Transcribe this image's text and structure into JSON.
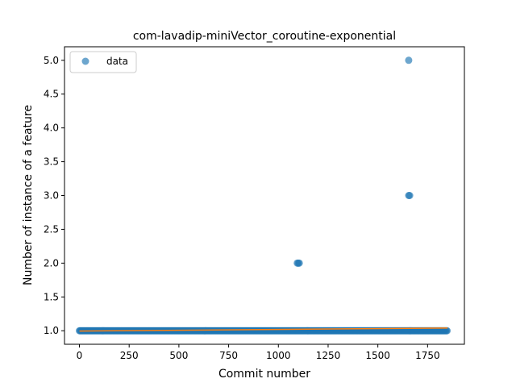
{
  "chart_data": {
    "type": "scatter",
    "title": "com-lavadip-miniVector_coroutine-exponential",
    "xlabel": "Commit number",
    "ylabel": "Number of instance of a feature",
    "xlim": [
      -75,
      1935
    ],
    "ylim": [
      0.8,
      5.2
    ],
    "xticks": [
      0,
      250,
      500,
      750,
      1000,
      1250,
      1500,
      1750
    ],
    "yticks": [
      1.0,
      1.5,
      2.0,
      2.5,
      3.0,
      3.5,
      4.0,
      4.5,
      5.0
    ],
    "grid": false,
    "legend": {
      "position": "top-left",
      "entries": [
        "data"
      ]
    },
    "colors": {
      "data": "#1f77b4",
      "fit": "#ff7f0e"
    },
    "series": [
      {
        "name": "data",
        "baseline": {
          "x_start": 0,
          "x_end": 1850,
          "y": 1.0
        },
        "points": [
          {
            "x": 1095,
            "y": 2.0
          },
          {
            "x": 1100,
            "y": 2.0
          },
          {
            "x": 1105,
            "y": 2.0
          },
          {
            "x": 1655,
            "y": 3.0
          },
          {
            "x": 1660,
            "y": 3.0
          },
          {
            "x": 1655,
            "y": 5.0
          }
        ]
      },
      {
        "type": "line",
        "x": [
          0,
          1850
        ],
        "y": [
          0.995,
          1.04
        ]
      }
    ]
  }
}
